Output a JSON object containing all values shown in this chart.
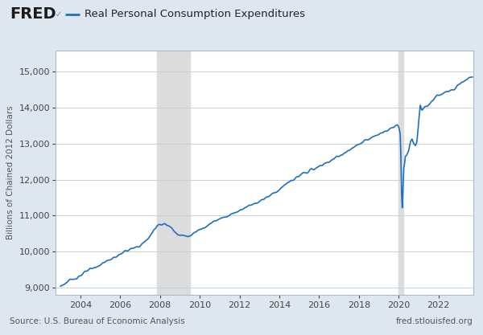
{
  "title": "Real Personal Consumption Expenditures",
  "ylabel": "Billions of Chained 2012 Dollars",
  "source_left": "Source: U.S. Bureau of Economic Analysis",
  "source_right": "fred.stlouisfed.org",
  "line_color": "#1F6FBF",
  "background_color": "#DEE7F0",
  "plot_background": "#FFFFFF",
  "recession_color": "#DCDCDC",
  "recession_2008": [
    2007.833,
    2009.5
  ],
  "recession_2020": [
    2020.0,
    2020.25
  ],
  "ylim": [
    8800,
    15600
  ],
  "yticks": [
    9000,
    10000,
    11000,
    12000,
    13000,
    14000,
    15000
  ],
  "xlim_start": 2002.75,
  "xlim_end": 2023.75,
  "xticks": [
    2004,
    2006,
    2008,
    2010,
    2012,
    2014,
    2016,
    2018,
    2020,
    2022
  ],
  "anchors": [
    [
      2003.0,
      9050
    ],
    [
      2003.25,
      9120
    ],
    [
      2003.5,
      9200
    ],
    [
      2003.75,
      9270
    ],
    [
      2004.0,
      9340
    ],
    [
      2004.25,
      9430
    ],
    [
      2004.5,
      9500
    ],
    [
      2004.75,
      9560
    ],
    [
      2005.0,
      9640
    ],
    [
      2005.25,
      9720
    ],
    [
      2005.5,
      9780
    ],
    [
      2005.75,
      9850
    ],
    [
      2006.0,
      9930
    ],
    [
      2006.25,
      10010
    ],
    [
      2006.5,
      10060
    ],
    [
      2006.75,
      10100
    ],
    [
      2007.0,
      10170
    ],
    [
      2007.25,
      10280
    ],
    [
      2007.5,
      10430
    ],
    [
      2007.75,
      10640
    ],
    [
      2007.833,
      10730
    ],
    [
      2008.0,
      10770
    ],
    [
      2008.25,
      10760
    ],
    [
      2008.5,
      10700
    ],
    [
      2008.75,
      10560
    ],
    [
      2009.0,
      10460
    ],
    [
      2009.25,
      10440
    ],
    [
      2009.5,
      10430
    ],
    [
      2009.75,
      10520
    ],
    [
      2010.0,
      10620
    ],
    [
      2010.25,
      10700
    ],
    [
      2010.5,
      10780
    ],
    [
      2010.75,
      10840
    ],
    [
      2011.0,
      10900
    ],
    [
      2011.25,
      10970
    ],
    [
      2011.5,
      11020
    ],
    [
      2011.75,
      11080
    ],
    [
      2012.0,
      11150
    ],
    [
      2012.25,
      11230
    ],
    [
      2012.5,
      11290
    ],
    [
      2012.75,
      11340
    ],
    [
      2013.0,
      11400
    ],
    [
      2013.25,
      11480
    ],
    [
      2013.5,
      11560
    ],
    [
      2013.75,
      11640
    ],
    [
      2014.0,
      11730
    ],
    [
      2014.25,
      11840
    ],
    [
      2014.5,
      11940
    ],
    [
      2014.75,
      12020
    ],
    [
      2015.0,
      12100
    ],
    [
      2015.25,
      12180
    ],
    [
      2015.5,
      12250
    ],
    [
      2015.75,
      12300
    ],
    [
      2016.0,
      12360
    ],
    [
      2016.25,
      12440
    ],
    [
      2016.5,
      12510
    ],
    [
      2016.75,
      12580
    ],
    [
      2017.0,
      12660
    ],
    [
      2017.25,
      12740
    ],
    [
      2017.5,
      12810
    ],
    [
      2017.75,
      12890
    ],
    [
      2018.0,
      12980
    ],
    [
      2018.25,
      13060
    ],
    [
      2018.5,
      13130
    ],
    [
      2018.75,
      13190
    ],
    [
      2019.0,
      13260
    ],
    [
      2019.25,
      13340
    ],
    [
      2019.5,
      13400
    ],
    [
      2019.75,
      13470
    ],
    [
      2019.917,
      13530
    ],
    [
      2020.0,
      13480
    ],
    [
      2020.083,
      13250
    ],
    [
      2020.167,
      11080
    ],
    [
      2020.25,
      12300
    ],
    [
      2020.333,
      12600
    ],
    [
      2020.5,
      12800
    ],
    [
      2020.583,
      13000
    ],
    [
      2020.667,
      13120
    ],
    [
      2020.75,
      13000
    ],
    [
      2020.833,
      12950
    ],
    [
      2020.917,
      13100
    ],
    [
      2021.0,
      13600
    ],
    [
      2021.083,
      14050
    ],
    [
      2021.167,
      13900
    ],
    [
      2021.25,
      13950
    ],
    [
      2021.5,
      14100
    ],
    [
      2021.75,
      14200
    ],
    [
      2022.0,
      14350
    ],
    [
      2022.25,
      14400
    ],
    [
      2022.5,
      14450
    ],
    [
      2022.75,
      14550
    ],
    [
      2023.0,
      14650
    ],
    [
      2023.25,
      14750
    ],
    [
      2023.5,
      14830
    ],
    [
      2023.667,
      14870
    ]
  ]
}
